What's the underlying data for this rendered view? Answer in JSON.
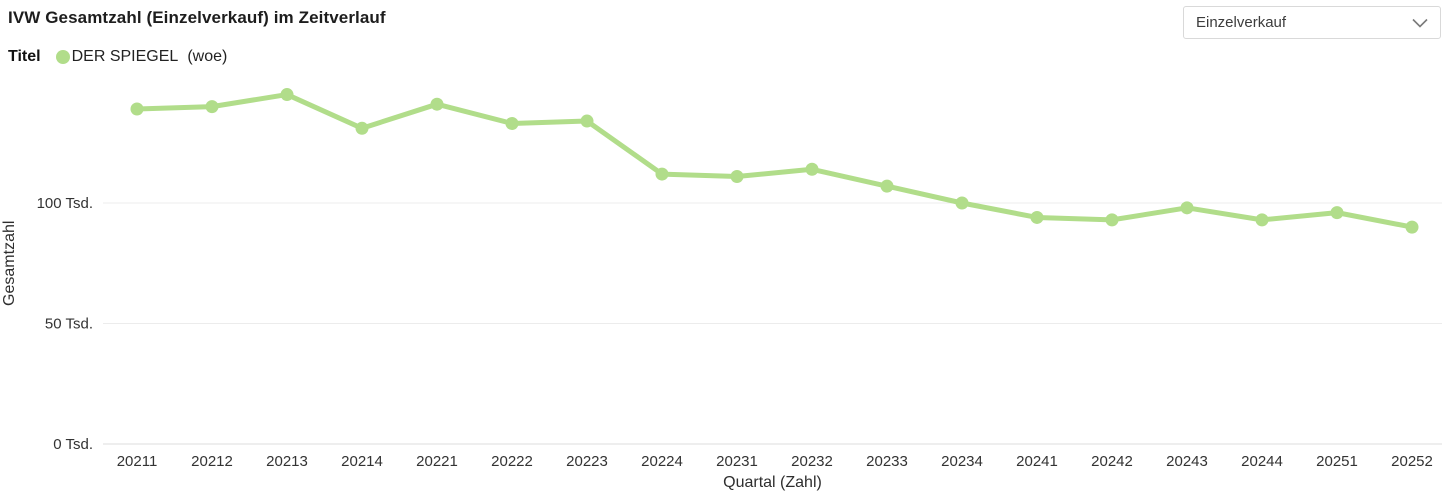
{
  "header": {
    "title": "IVW Gesamtzahl (Einzelverkauf) im Zeitverlauf",
    "dropdown": {
      "value": "Einzelverkauf"
    }
  },
  "legend": {
    "label": "Titel",
    "series_name": "DER SPIEGEL",
    "series_suffix": "(woe)"
  },
  "chart_data": {
    "type": "line",
    "title": "IVW Gesamtzahl (Einzelverkauf) im Zeitverlauf",
    "xlabel": "Quartal (Zahl)",
    "ylabel": "Gesamtzahl",
    "unit": "Tsd.",
    "grid": true,
    "legend_position": "top-left",
    "ylim": [
      0,
      150
    ],
    "categories": [
      "20211",
      "20212",
      "20213",
      "20214",
      "20221",
      "20222",
      "20223",
      "20224",
      "20231",
      "20232",
      "20233",
      "20234",
      "20241",
      "20242",
      "20243",
      "20244",
      "20251",
      "20252"
    ],
    "series": [
      {
        "name": "DER SPIEGEL (woe)",
        "color": "#b1dd8a",
        "values": [
          139,
          140,
          145,
          131,
          141,
          133,
          134,
          112,
          111,
          114,
          107,
          100,
          94,
          93,
          98,
          93,
          96,
          90
        ]
      }
    ],
    "y_ticks": [
      {
        "value": 0,
        "label": "0 Tsd."
      },
      {
        "value": 50,
        "label": "50 Tsd."
      },
      {
        "value": 100,
        "label": "100 Tsd."
      }
    ]
  },
  "colors": {
    "series_green": "#b1dd8a",
    "gridline": "#ececec",
    "axis_line": "#dcdcdc",
    "tick_text": "#333333"
  }
}
